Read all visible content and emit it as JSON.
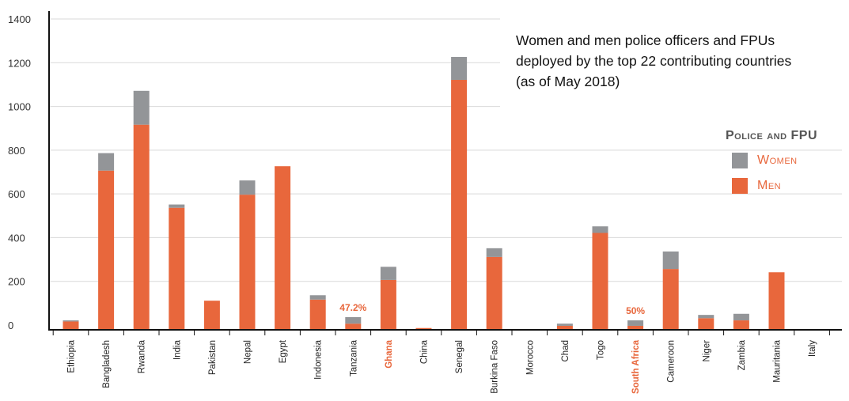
{
  "chart_data": {
    "type": "bar",
    "stacked": true,
    "title": [
      "Women and men police officers and FPUs",
      "deployed by the top 22 contributing countries",
      "(as of May 2018)"
    ],
    "categories": [
      "Ethiopia",
      "Bangladesh",
      "Rwanda",
      "India",
      "Pakistan",
      "Nepal",
      "Egypt",
      "Indonesia",
      "Tanzania",
      "Ghana",
      "China",
      "Senegal",
      "Burkina Faso",
      "Morocco",
      "Chad",
      "Togo",
      "South Africa",
      "Cameroon",
      "Niger",
      "Zambia",
      "Mauritania",
      "Italy"
    ],
    "highlighted_categories": [
      "Ghana",
      "South Africa"
    ],
    "series": [
      {
        "name": "Men",
        "color": "#e8673c",
        "values": [
          40,
          730,
          940,
          560,
          135,
          620,
          750,
          140,
          30,
          230,
          10,
          1145,
          335,
          0,
          20,
          445,
          20,
          280,
          55,
          45,
          265,
          3
        ]
      },
      {
        "name": "Women",
        "color": "#939598",
        "values": [
          5,
          80,
          155,
          15,
          0,
          65,
          0,
          20,
          30,
          60,
          0,
          105,
          40,
          0,
          10,
          30,
          25,
          80,
          15,
          30,
          0,
          2
        ]
      }
    ],
    "ylim": [
      0,
      1400
    ],
    "yticks": [
      0,
      200,
      400,
      600,
      800,
      1000,
      1200,
      1400
    ],
    "ylabel": "",
    "xlabel": "",
    "grid": true,
    "annotations": [
      {
        "category": "Tanzania",
        "text": "47.2%"
      },
      {
        "category": "South Africa",
        "text": "50%"
      }
    ],
    "legend": {
      "title": "Police and FPU",
      "position": "right",
      "items": [
        {
          "label": "Women",
          "color": "#939598"
        },
        {
          "label": "Men",
          "color": "#e8673c"
        }
      ]
    }
  }
}
